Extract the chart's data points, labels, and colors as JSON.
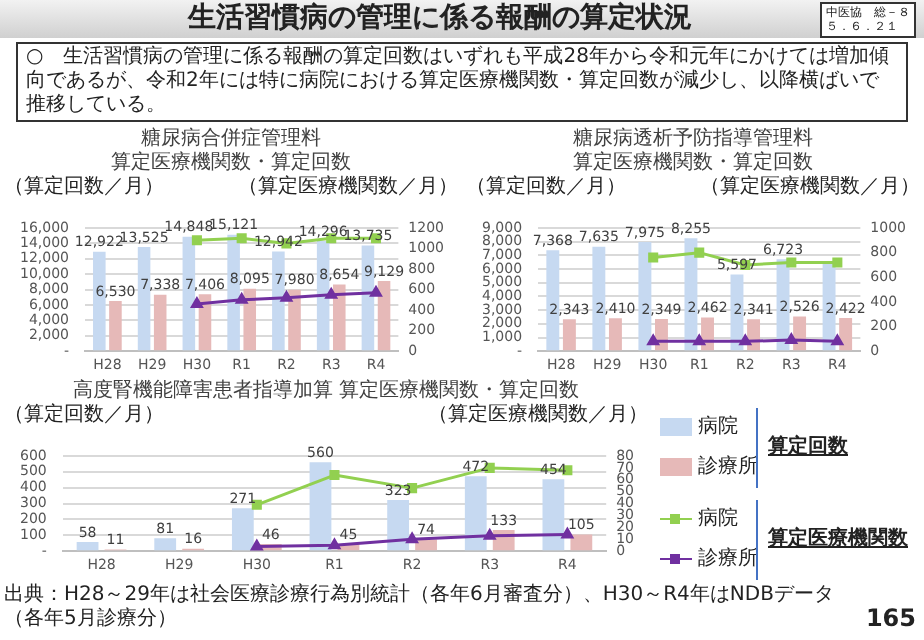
{
  "chart_data": [
    {
      "type": "other",
      "title": "生活習慣病の管理に係る報酬の算定状況",
      "annotations": [
        "中医協　総－８",
        "５．６．２１",
        "○　生活習慣病の管理に係る報酬の算定回数はいずれも平成28年から令和元年にかけては増加傾向であるが、令和2年には特に病院における算定医療機関数・算定回数が減少し、以降横ばいで推移している。",
        "出典：H28～29年は社会医療診療行為別統計（各年6月審査分）、H30～R4年はNDBデータ（各年5月診療分）",
        "165"
      ]
    },
    {
      "type": "bar",
      "title": "糖尿病合併症管理料",
      "subtitle": "算定医療機関数・算定回数",
      "ylabel": "（算定回数／月）",
      "y2label": "（算定医療機関数／月）",
      "categories": [
        "H28",
        "H29",
        "H30",
        "R1",
        "R2",
        "R3",
        "R4"
      ],
      "series": [
        {
          "color": "#c6d9f1",
          "values": [
            12922,
            13525,
            14848,
            15121,
            12942,
            14296,
            13735
          ],
          "value_labels": [
            "12,922",
            "13,525",
            "14,848",
            "15,121",
            "12,942",
            "14,296",
            "13,735"
          ]
        },
        {
          "color": "#e6b9b8",
          "values": [
            6530,
            7338,
            7406,
            8095,
            7980,
            8654,
            9129
          ],
          "value_labels": [
            "6,530",
            "7,338",
            "7,406",
            "8,095",
            "7,980",
            "8,654",
            "9,129"
          ]
        },
        {
          "type": "line",
          "axis": "y2",
          "color": "#92d050",
          "marker": "square",
          "values": [
            null,
            null,
            1080,
            1100,
            1050,
            1100,
            1100
          ]
        },
        {
          "type": "line",
          "axis": "y2",
          "color": "#7030a0",
          "marker": "triangle",
          "values": [
            null,
            null,
            460,
            500,
            520,
            550,
            570
          ]
        }
      ],
      "ylim": [
        0,
        16000
      ],
      "yticks": [
        {
          "value": 0,
          "label": "-"
        },
        {
          "value": 2000,
          "label": "2,000"
        },
        {
          "value": 4000,
          "label": "4,000"
        },
        {
          "value": 6000,
          "label": "6,000"
        },
        {
          "value": 8000,
          "label": "8,000"
        },
        {
          "value": 10000,
          "label": "10,000"
        },
        {
          "value": 12000,
          "label": "12,000"
        },
        {
          "value": 14000,
          "label": "14,000"
        },
        {
          "value": 16000,
          "label": "16,000"
        }
      ],
      "y2lim": [
        0,
        1200
      ],
      "y2ticks": [
        0,
        200,
        400,
        600,
        800,
        1000,
        1200
      ],
      "grid": "y"
    },
    {
      "type": "bar",
      "title": "糖尿病透析予防指導管理料",
      "subtitle": "算定医療機関数・算定回数",
      "ylabel": "（算定回数／月）",
      "y2label": "（算定医療機関数／月）",
      "categories": [
        "H28",
        "H29",
        "H30",
        "R1",
        "R2",
        "R3",
        "R4"
      ],
      "series": [
        {
          "color": "#c6d9f1",
          "values": [
            7368,
            7635,
            7975,
            8255,
            5597,
            6723,
            6500
          ],
          "value_labels": [
            "7,368",
            "7,635",
            "7,975",
            "8,255",
            "5,597",
            "6,723",
            null
          ]
        },
        {
          "color": "#e6b9b8",
          "values": [
            2343,
            2410,
            2349,
            2462,
            2341,
            2526,
            2422
          ],
          "value_labels": [
            "2,343",
            "2,410",
            "2,349",
            "2,462",
            "2,341",
            "2,526",
            "2,422"
          ]
        },
        {
          "type": "line",
          "axis": "y2",
          "color": "#92d050",
          "marker": "square",
          "values": [
            null,
            null,
            760,
            800,
            700,
            720,
            720
          ]
        },
        {
          "type": "line",
          "axis": "y2",
          "color": "#7030a0",
          "marker": "triangle",
          "values": [
            null,
            null,
            80,
            80,
            80,
            90,
            80
          ]
        }
      ],
      "ylim": [
        0,
        9000
      ],
      "yticks": [
        {
          "value": 0,
          "label": "-"
        },
        {
          "value": 1000,
          "label": "1,000"
        },
        {
          "value": 2000,
          "label": "2,000"
        },
        {
          "value": 3000,
          "label": "3,000"
        },
        {
          "value": 4000,
          "label": "4,000"
        },
        {
          "value": 5000,
          "label": "5,000"
        },
        {
          "value": 6000,
          "label": "6,000"
        },
        {
          "value": 7000,
          "label": "7,000"
        },
        {
          "value": 8000,
          "label": "8,000"
        },
        {
          "value": 9000,
          "label": "9,000"
        }
      ],
      "y2lim": [
        0,
        1000
      ],
      "y2ticks": [
        0,
        200,
        400,
        600,
        800,
        1000
      ],
      "grid": "y"
    },
    {
      "type": "bar",
      "title": "高度腎機能障害患者指導加算",
      "subtitle": "算定医療機関数・算定回数",
      "ylabel": "（算定回数／月）",
      "y2label": "（算定医療機関数／月）",
      "categories": [
        "H28",
        "H29",
        "H30",
        "R1",
        "R2",
        "R3",
        "R4"
      ],
      "series": [
        {
          "name": "病院",
          "color": "#c6d9f1",
          "values": [
            58,
            81,
            271,
            560,
            323,
            472,
            454
          ],
          "value_labels": [
            "58",
            "81",
            "271",
            "560",
            "323",
            "472",
            "454"
          ]
        },
        {
          "name": "診療所",
          "color": "#e6b9b8",
          "values": [
            11,
            16,
            46,
            45,
            74,
            133,
            105
          ],
          "value_labels": [
            "11",
            "16",
            "46",
            "45",
            "74",
            "133",
            "105"
          ]
        },
        {
          "name": "病院",
          "type": "line",
          "axis": "y2",
          "color": "#92d050",
          "marker": "square",
          "values": [
            null,
            null,
            39,
            64,
            53,
            70,
            68
          ]
        },
        {
          "name": "診療所",
          "type": "line",
          "axis": "y2",
          "color": "#7030a0",
          "marker": "triangle",
          "values": [
            null,
            null,
            4,
            5,
            10,
            13,
            14
          ]
        }
      ],
      "ylim": [
        0,
        600
      ],
      "yticks": [
        {
          "value": 0,
          "label": "-"
        },
        100,
        200,
        300,
        400,
        500,
        600
      ],
      "y2lim": [
        0,
        80
      ],
      "y2ticks": [
        0,
        10,
        20,
        30,
        40,
        50,
        60,
        70,
        80
      ],
      "grid": "y",
      "legend": "right",
      "annotations": [
        "算定回数",
        "算定医療機関数"
      ]
    }
  ]
}
